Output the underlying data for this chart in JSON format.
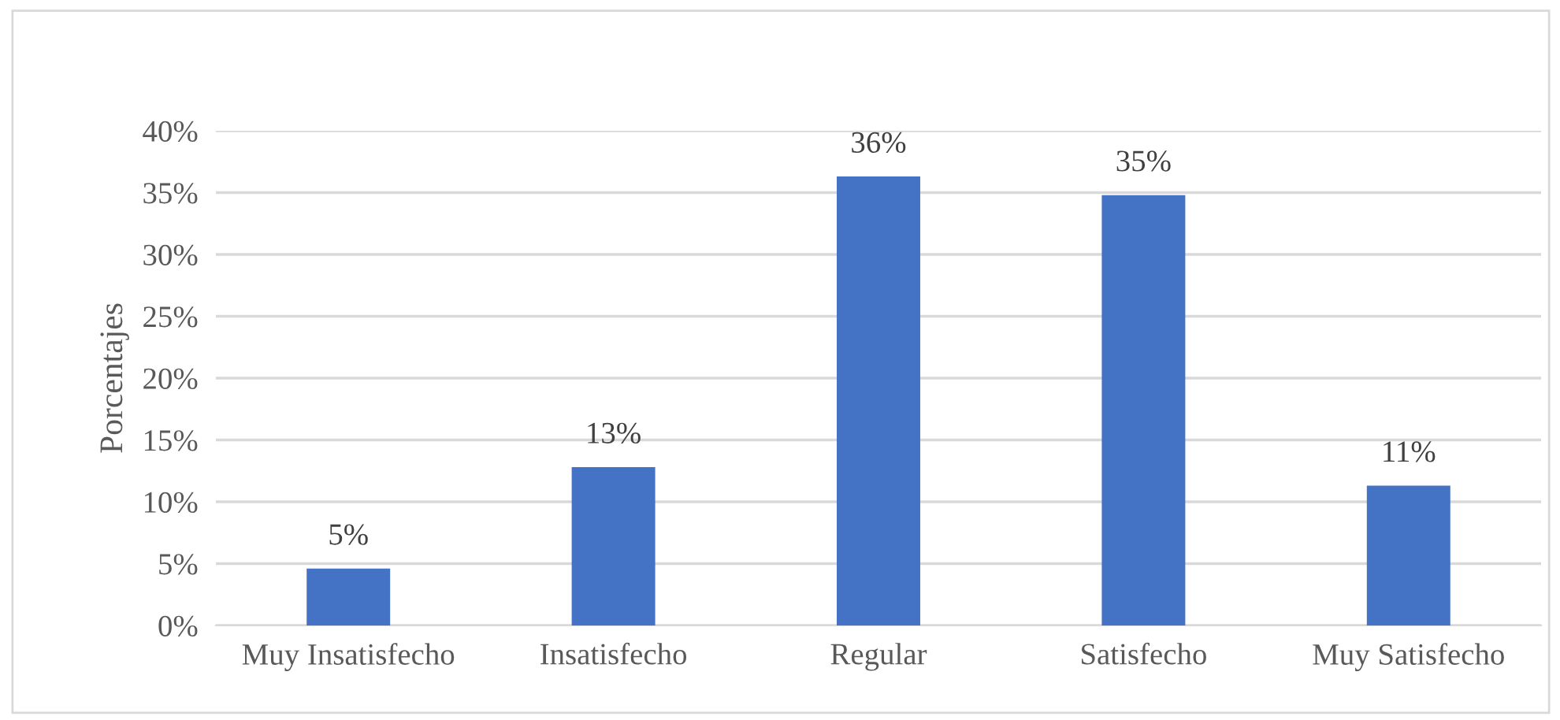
{
  "chart_data": {
    "type": "bar",
    "ylabel": "Porcentajes",
    "categories": [
      "Muy Insatisfecho",
      "Insatisfecho",
      "Regular",
      "Satisfecho",
      "Muy Satisfecho"
    ],
    "values": [
      4.6,
      12.8,
      36.3,
      34.8,
      11.3
    ],
    "value_labels": [
      "5%",
      "13%",
      "36%",
      "35%",
      "11%"
    ],
    "color": "#4472c4",
    "ylim": [
      0,
      40
    ],
    "yticks": [
      {
        "value": 0,
        "label": "0%"
      },
      {
        "value": 5,
        "label": "5%"
      },
      {
        "value": 10,
        "label": "10%"
      },
      {
        "value": 15,
        "label": "15%"
      },
      {
        "value": 20,
        "label": "20%"
      },
      {
        "value": 25,
        "label": "25%"
      },
      {
        "value": 30,
        "label": "30%"
      },
      {
        "value": 35,
        "label": "35%"
      },
      {
        "value": 40,
        "label": "40%"
      }
    ],
    "grid": "y",
    "legend": false
  }
}
